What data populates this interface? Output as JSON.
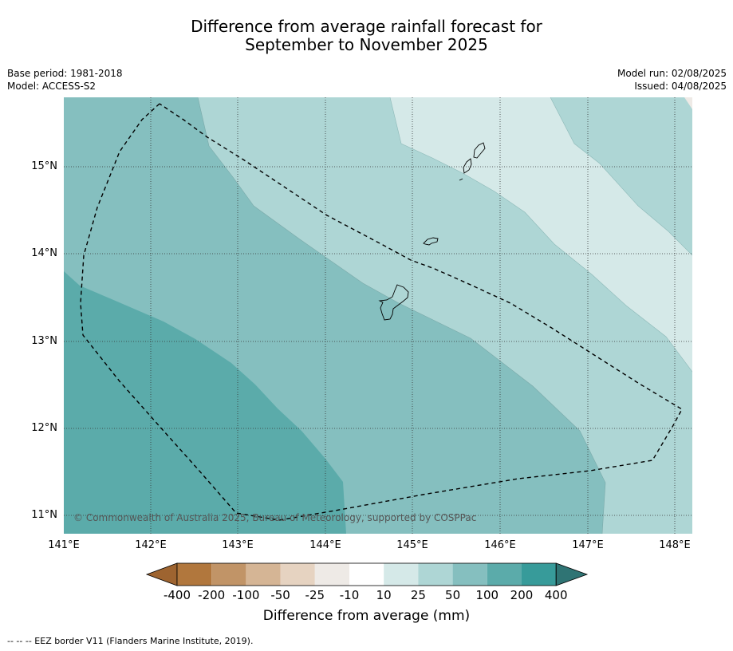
{
  "title_line1": "Difference from average rainfall forecast for",
  "title_line2": "September to November 2025",
  "meta_left": {
    "base_period": "Base period: 1981-2018",
    "model": "Model: ACCESS-S2"
  },
  "meta_right": {
    "model_run": "Model run: 02/08/2025",
    "issued": "Issued: 04/08/2025"
  },
  "copyright": "© Commonwealth of Australia 2025, Bureau of Meteorology, supported by COSPPac",
  "footnote": "--  --  -- EEZ border V11 (Flanders Marine Institute, 2019).",
  "map": {
    "lat_labels": [
      "15°N",
      "14°N",
      "13°N",
      "12°N",
      "11°N"
    ],
    "lon_labels": [
      "141°E",
      "142°E",
      "143°E",
      "144°E",
      "145°E",
      "146°E",
      "147°E",
      "148°E"
    ],
    "lon_range": [
      141,
      148.2
    ],
    "lat_range": [
      10.8,
      15.8
    ],
    "region_colors": {
      "50_to_100": "#85bfbf",
      "25_to_50": "#aed6d5",
      "10_to_25": "#d5e9e8",
      "100_to_200": "#5babaa"
    }
  },
  "colorbar": {
    "title": "Difference from average (mm)",
    "tick_labels": [
      "-400",
      "-200",
      "-100",
      "-50",
      "-25",
      "-10",
      "10",
      "25",
      "50",
      "100",
      "200",
      "400"
    ],
    "colors": [
      "#9e6430",
      "#b1773d",
      "#c19467",
      "#d5b595",
      "#e6d3c1",
      "#eeeae6",
      "#ffffff",
      "#d5e9e8",
      "#aed6d5",
      "#85bfbf",
      "#5babaa",
      "#379b9a",
      "#2f7474"
    ]
  }
}
